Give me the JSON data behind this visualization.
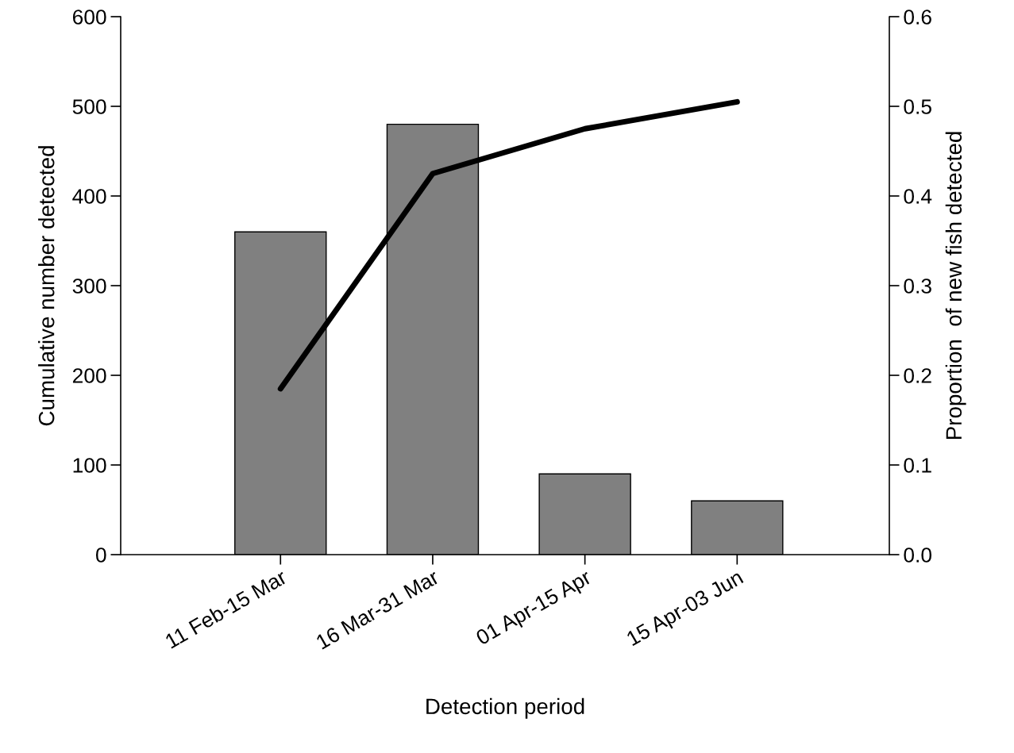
{
  "chart_data": {
    "type": "bar",
    "xlabel": "Detection period",
    "ylabel": "Cumulative number detected",
    "y2label": "Proportion  of new fish detected",
    "categories": [
      "11 Feb-15 Mar",
      "16 Mar-31 Mar",
      "01 Apr-15 Apr",
      "15 Apr-03 Jun"
    ],
    "series": [
      {
        "color": "#808080",
        "values": [
          360,
          480,
          90,
          60
        ]
      },
      {
        "type": "line",
        "axis": "y2",
        "color": "#000000",
        "values": [
          0.185,
          0.425,
          0.475,
          0.505
        ]
      }
    ],
    "ylim": [
      0,
      600
    ],
    "yticks": [
      0,
      100,
      200,
      300,
      400,
      500,
      600
    ],
    "y2lim": [
      0,
      0.6
    ],
    "y2ticks": [
      {
        "value": 0,
        "label": "0.0"
      },
      0.1,
      0.2,
      0.3,
      0.4,
      0.5,
      0.6
    ],
    "grid": false,
    "legend": false,
    "marker": "none",
    "line_style": "solid"
  }
}
